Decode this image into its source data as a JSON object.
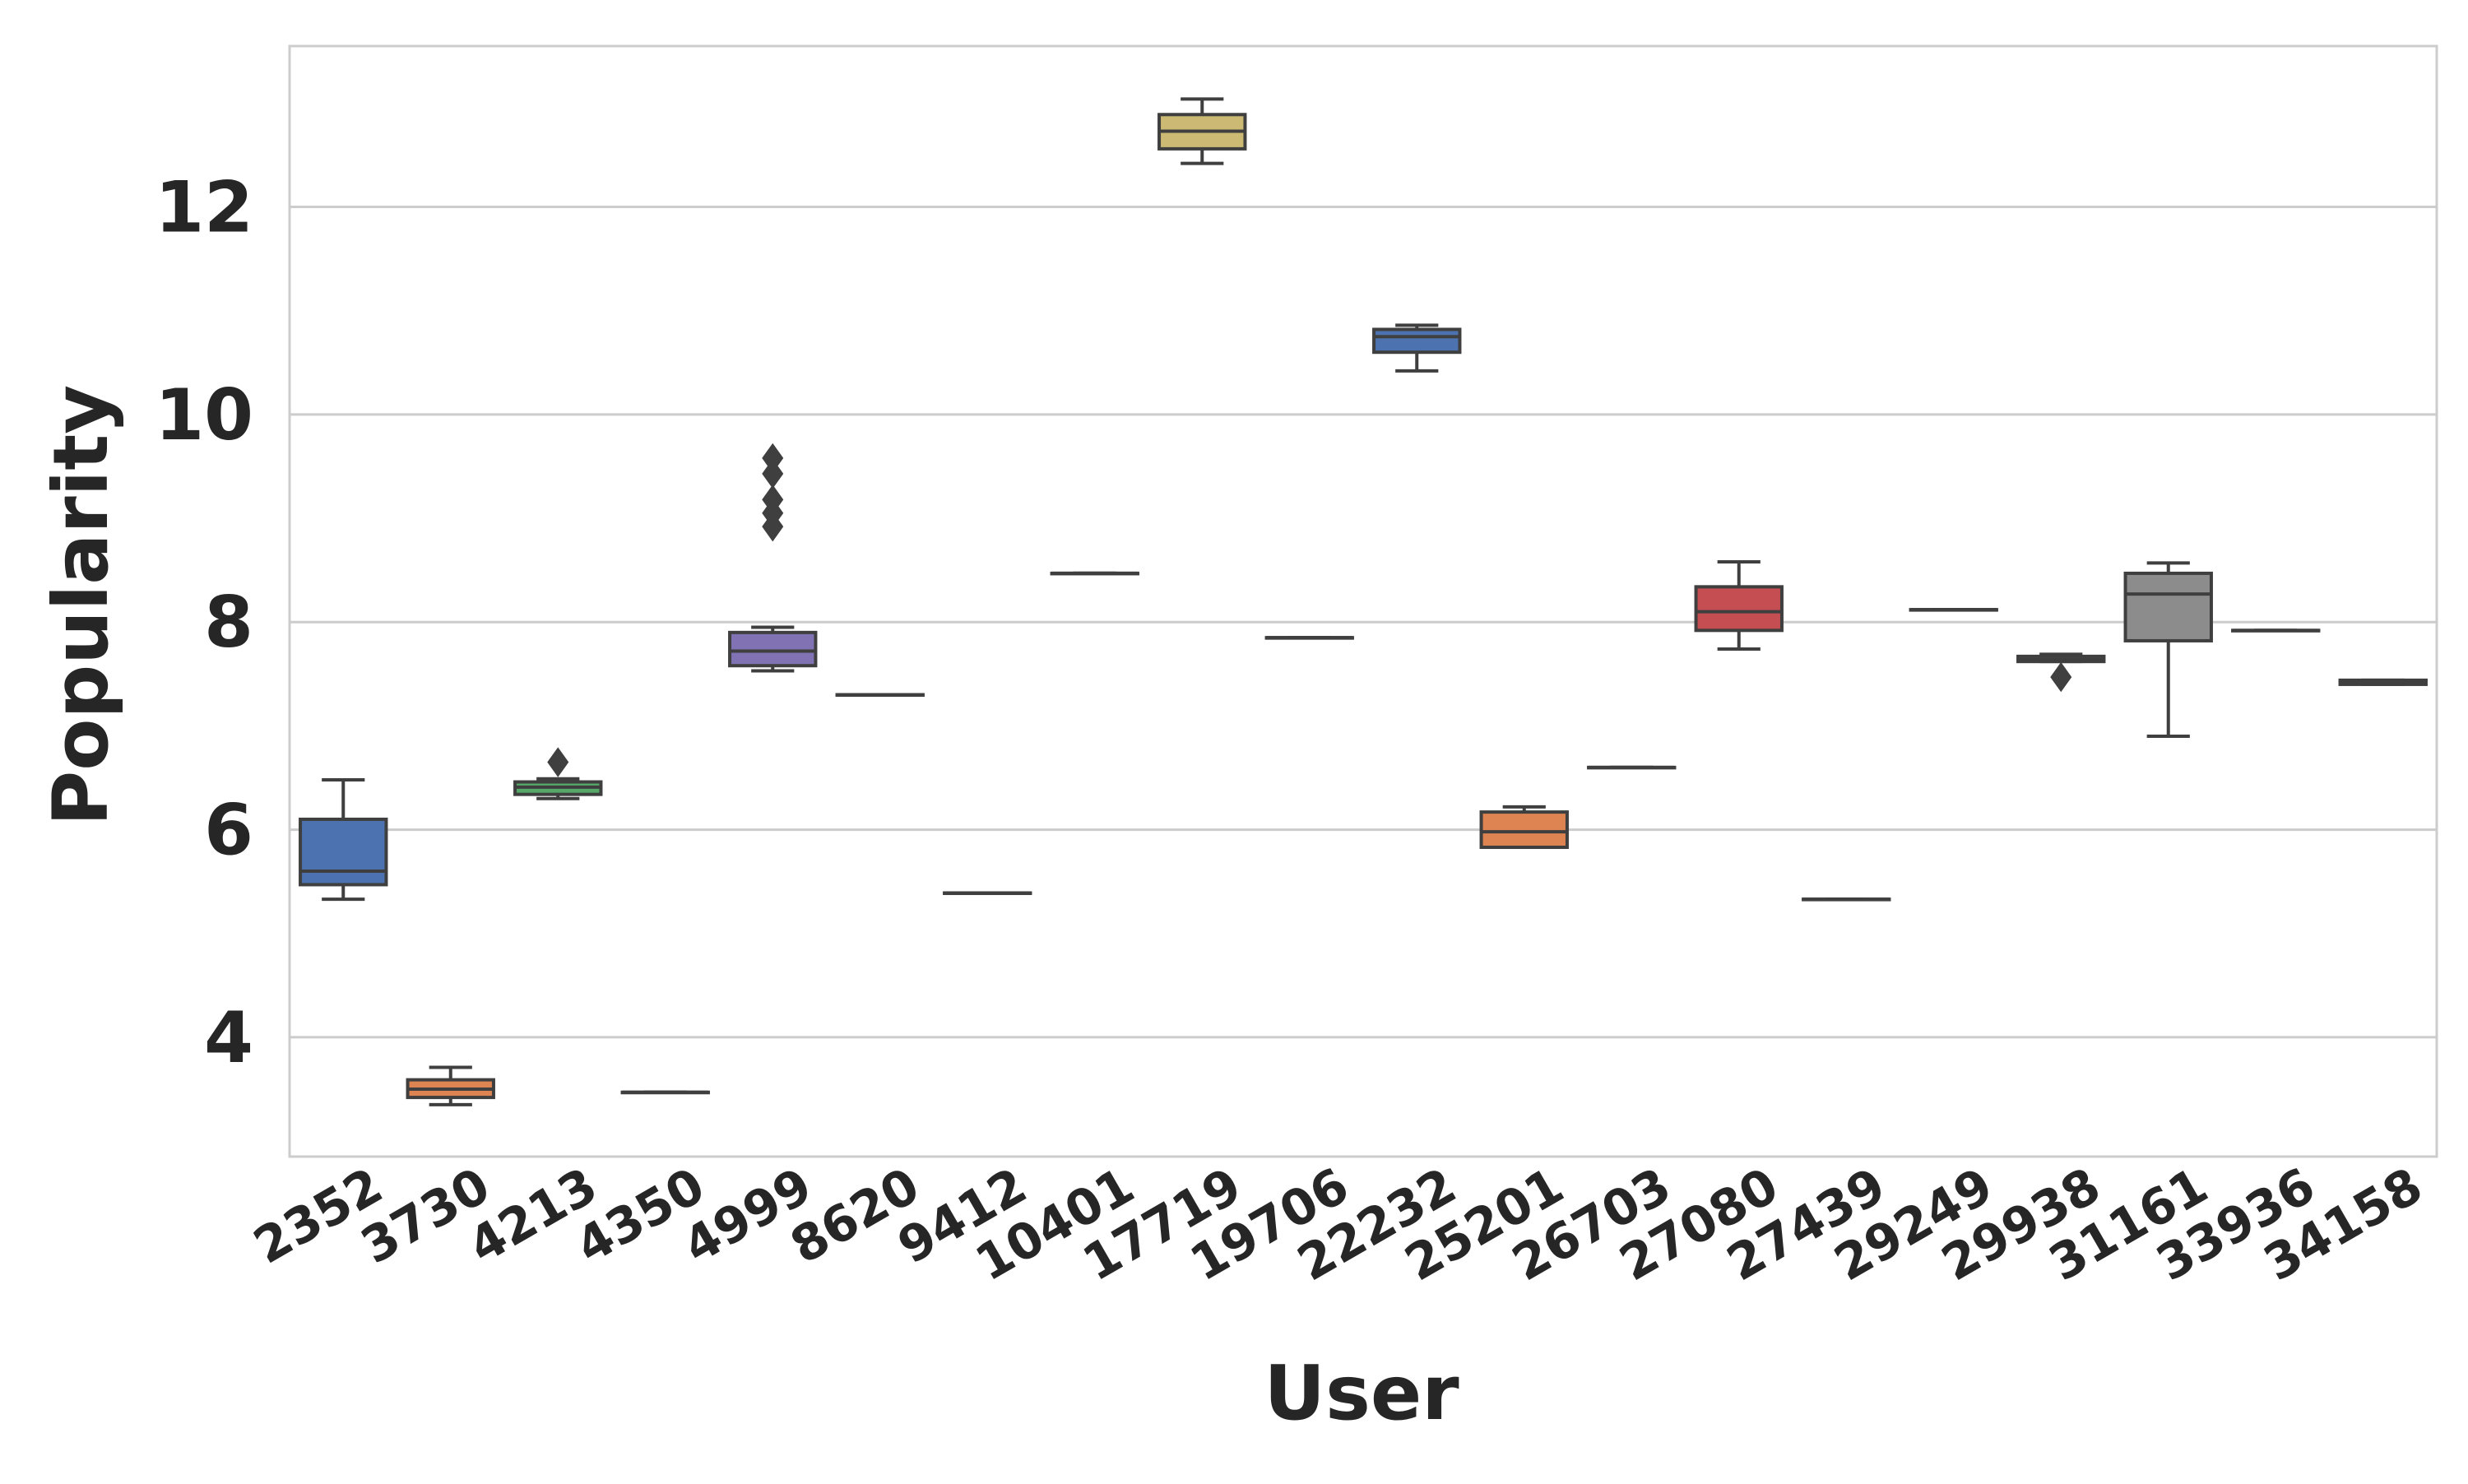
{
  "chart_data": {
    "type": "box",
    "xlabel": "User",
    "ylabel": "Popularity",
    "ylim": [
      2.85,
      13.55
    ],
    "yticks": [
      4,
      6,
      8,
      10,
      12
    ],
    "grid": "horizontal",
    "legend": "none",
    "categories": [
      "2352",
      "3730",
      "4213",
      "4350",
      "4999",
      "8620",
      "9412",
      "10401",
      "17719",
      "19706",
      "22232",
      "25201",
      "26703",
      "27080",
      "27439",
      "29249",
      "29938",
      "31161",
      "33936",
      "34158"
    ],
    "series": [
      {
        "category": "2352",
        "whisker_low": 5.33,
        "q1": 5.47,
        "median": 5.6,
        "q3": 6.1,
        "whisker_high": 6.48,
        "outliers": [],
        "color": "#4c72b0"
      },
      {
        "category": "3730",
        "whisker_low": 3.35,
        "q1": 3.42,
        "median": 3.5,
        "q3": 3.59,
        "whisker_high": 3.71,
        "outliers": [],
        "color": "#dd8452"
      },
      {
        "category": "4213",
        "whisker_low": 6.3,
        "q1": 6.34,
        "median": 6.41,
        "q3": 6.46,
        "whisker_high": 6.49,
        "outliers": [
          6.65
        ],
        "color": "#55a868"
      },
      {
        "category": "4350",
        "whisker_low": 3.47,
        "q1": 3.47,
        "median": 3.47,
        "q3": 3.47,
        "whisker_high": 3.47,
        "outliers": [],
        "color": "#c44e52"
      },
      {
        "category": "4999",
        "whisker_low": 7.53,
        "q1": 7.58,
        "median": 7.72,
        "q3": 7.9,
        "whisker_high": 7.95,
        "outliers": [
          8.92,
          9.05,
          9.18,
          9.43,
          9.58
        ],
        "color": "#8172b3"
      },
      {
        "category": "8620",
        "whisker_low": 7.3,
        "q1": 7.3,
        "median": 7.3,
        "q3": 7.3,
        "whisker_high": 7.3,
        "outliers": [],
        "color": "#937860"
      },
      {
        "category": "9412",
        "whisker_low": 5.39,
        "q1": 5.39,
        "median": 5.39,
        "q3": 5.39,
        "whisker_high": 5.39,
        "outliers": [],
        "color": "#da8bc3"
      },
      {
        "category": "10401",
        "whisker_low": 8.47,
        "q1": 8.47,
        "median": 8.47,
        "q3": 8.47,
        "whisker_high": 8.47,
        "outliers": [],
        "color": "#8c8c8c"
      },
      {
        "category": "17719",
        "whisker_low": 12.42,
        "q1": 12.56,
        "median": 12.73,
        "q3": 12.89,
        "whisker_high": 13.04,
        "outliers": [],
        "color": "#ccb974"
      },
      {
        "category": "19706",
        "whisker_low": 7.85,
        "q1": 7.85,
        "median": 7.85,
        "q3": 7.85,
        "whisker_high": 7.85,
        "outliers": [],
        "color": "#64b5cd"
      },
      {
        "category": "22232",
        "whisker_low": 10.42,
        "q1": 10.6,
        "median": 10.75,
        "q3": 10.82,
        "whisker_high": 10.86,
        "outliers": [],
        "color": "#4c72b0"
      },
      {
        "category": "25201",
        "whisker_low": 5.83,
        "q1": 5.83,
        "median": 5.98,
        "q3": 6.17,
        "whisker_high": 6.22,
        "outliers": [],
        "color": "#dd8452"
      },
      {
        "category": "26703",
        "whisker_low": 6.6,
        "q1": 6.6,
        "median": 6.6,
        "q3": 6.6,
        "whisker_high": 6.6,
        "outliers": [],
        "color": "#55a868"
      },
      {
        "category": "27080",
        "whisker_low": 7.74,
        "q1": 7.92,
        "median": 8.1,
        "q3": 8.34,
        "whisker_high": 8.58,
        "outliers": [],
        "color": "#c44e52"
      },
      {
        "category": "27439",
        "whisker_low": 5.33,
        "q1": 5.33,
        "median": 5.33,
        "q3": 5.33,
        "whisker_high": 5.33,
        "outliers": [],
        "color": "#8172b3"
      },
      {
        "category": "29249",
        "whisker_low": 8.12,
        "q1": 8.12,
        "median": 8.12,
        "q3": 8.12,
        "whisker_high": 8.12,
        "outliers": [],
        "color": "#937860"
      },
      {
        "category": "29938",
        "whisker_low": 7.62,
        "q1": 7.62,
        "median": 7.64,
        "q3": 7.67,
        "whisker_high": 7.69,
        "outliers": [
          7.47
        ],
        "color": "#da8bc3"
      },
      {
        "category": "31161",
        "whisker_low": 6.9,
        "q1": 7.82,
        "median": 8.27,
        "q3": 8.47,
        "whisker_high": 8.57,
        "outliers": [],
        "color": "#8c8c8c"
      },
      {
        "category": "33936",
        "whisker_low": 7.92,
        "q1": 7.92,
        "median": 7.92,
        "q3": 7.92,
        "whisker_high": 7.92,
        "outliers": [],
        "color": "#ccb974"
      },
      {
        "category": "34158",
        "whisker_low": 7.4,
        "q1": 7.4,
        "median": 7.42,
        "q3": 7.44,
        "whisker_high": 7.44,
        "outliers": [],
        "color": "#64b5cd"
      }
    ]
  }
}
